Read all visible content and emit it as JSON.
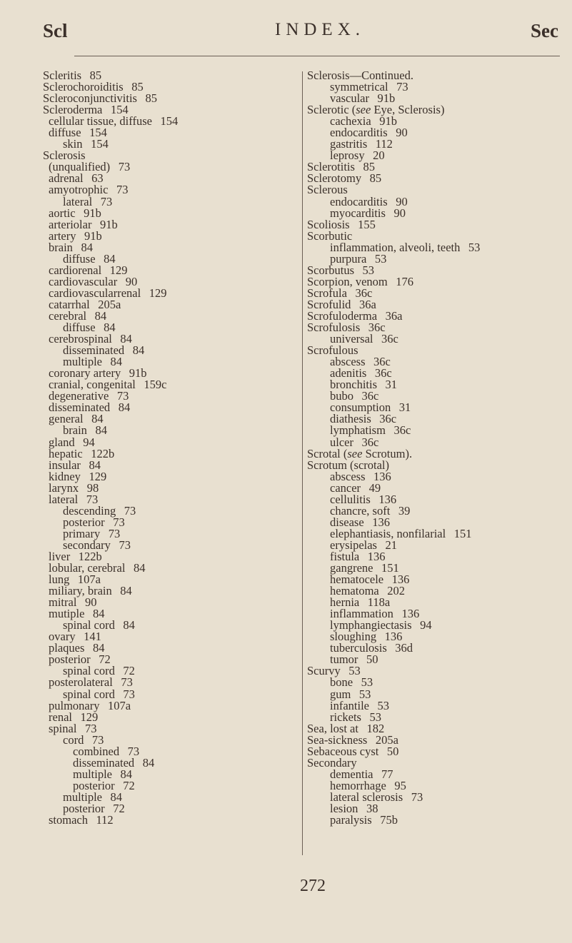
{
  "header": {
    "left": "Scl",
    "center": "INDEX.",
    "right": "Sec"
  },
  "page_number": "272",
  "left_column": [
    {
      "level": 0,
      "term": "Scleritis",
      "page": "85"
    },
    {
      "level": 0,
      "term": "Sclerochoroiditis",
      "page": "85"
    },
    {
      "level": 0,
      "term": "Scleroconjunctivitis",
      "page": "85"
    },
    {
      "level": 0,
      "term": "Scleroderma",
      "page": "154"
    },
    {
      "level": 1,
      "term": "cellular tissue, diffuse",
      "page": "154"
    },
    {
      "level": 1,
      "term": "diffuse",
      "page": "154"
    },
    {
      "level": 2,
      "term": "skin",
      "page": "154"
    },
    {
      "level": 0,
      "term": "Sclerosis",
      "page": ""
    },
    {
      "level": 1,
      "term": "(unqualified)",
      "page": "73"
    },
    {
      "level": 1,
      "term": "adrenal",
      "page": "63"
    },
    {
      "level": 1,
      "term": "amyotrophic",
      "page": "73"
    },
    {
      "level": 2,
      "term": "lateral",
      "page": "73"
    },
    {
      "level": 1,
      "term": "aortic",
      "page": "91b"
    },
    {
      "level": 1,
      "term": "arteriolar",
      "page": "91b"
    },
    {
      "level": 1,
      "term": "artery",
      "page": "91b"
    },
    {
      "level": 1,
      "term": "brain",
      "page": "84"
    },
    {
      "level": 2,
      "term": "diffuse",
      "page": "84"
    },
    {
      "level": 1,
      "term": "cardiorenal",
      "page": "129"
    },
    {
      "level": 1,
      "term": "cardiovascular",
      "page": "90"
    },
    {
      "level": 1,
      "term": "cardiovascularrenal",
      "page": "129"
    },
    {
      "level": 1,
      "term": "catarrhal",
      "page": "205a"
    },
    {
      "level": 1,
      "term": "cerebral",
      "page": "84"
    },
    {
      "level": 2,
      "term": "diffuse",
      "page": "84"
    },
    {
      "level": 1,
      "term": "cerebrospinal",
      "page": "84"
    },
    {
      "level": 2,
      "term": "disseminated",
      "page": "84"
    },
    {
      "level": 2,
      "term": "multiple",
      "page": "84"
    },
    {
      "level": 1,
      "term": "coronary artery",
      "page": "91b"
    },
    {
      "level": 1,
      "term": "cranial, congenital",
      "page": "159c"
    },
    {
      "level": 1,
      "term": "degenerative",
      "page": "73"
    },
    {
      "level": 1,
      "term": "disseminated",
      "page": "84"
    },
    {
      "level": 1,
      "term": "general",
      "page": "84"
    },
    {
      "level": 2,
      "term": "brain",
      "page": "84"
    },
    {
      "level": 1,
      "term": "gland",
      "page": "94"
    },
    {
      "level": 1,
      "term": "hepatic",
      "page": "122b"
    },
    {
      "level": 1,
      "term": "insular",
      "page": "84"
    },
    {
      "level": 1,
      "term": "kidney",
      "page": "129"
    },
    {
      "level": 1,
      "term": "larynx",
      "page": "98"
    },
    {
      "level": 1,
      "term": "lateral",
      "page": "73"
    },
    {
      "level": 2,
      "term": "descending",
      "page": "73"
    },
    {
      "level": 2,
      "term": "posterior",
      "page": "73"
    },
    {
      "level": 2,
      "term": "primary",
      "page": "73"
    },
    {
      "level": 2,
      "term": "secondary",
      "page": "73"
    },
    {
      "level": 1,
      "term": "liver",
      "page": "122b"
    },
    {
      "level": 1,
      "term": "lobular, cerebral",
      "page": "84"
    },
    {
      "level": 1,
      "term": "lung",
      "page": "107a"
    },
    {
      "level": 1,
      "term": "miliary, brain",
      "page": "84"
    },
    {
      "level": 1,
      "term": "mitral",
      "page": "90"
    },
    {
      "level": 1,
      "term": "mutiple",
      "page": "84"
    },
    {
      "level": 2,
      "term": "spinal cord",
      "page": "84"
    },
    {
      "level": 1,
      "term": "ovary",
      "page": "141"
    },
    {
      "level": 1,
      "term": "plaques",
      "page": "84"
    },
    {
      "level": 1,
      "term": "posterior",
      "page": "72"
    },
    {
      "level": 2,
      "term": "spinal cord",
      "page": "72"
    },
    {
      "level": 1,
      "term": "posterolateral",
      "page": "73"
    },
    {
      "level": 2,
      "term": "spinal cord",
      "page": "73"
    },
    {
      "level": 1,
      "term": "pulmonary",
      "page": "107a"
    },
    {
      "level": 1,
      "term": "renal",
      "page": "129"
    },
    {
      "level": 1,
      "term": "spinal",
      "page": "73"
    },
    {
      "level": 2,
      "term": "cord",
      "page": "73"
    },
    {
      "level": 3,
      "term": "combined",
      "page": "73"
    },
    {
      "level": 3,
      "term": "disseminated",
      "page": "84"
    },
    {
      "level": 3,
      "term": "multiple",
      "page": "84"
    },
    {
      "level": 3,
      "term": "posterior",
      "page": "72"
    },
    {
      "level": 2,
      "term": "multiple",
      "page": "84"
    },
    {
      "level": 2,
      "term": "posterior",
      "page": "72"
    },
    {
      "level": 1,
      "term": "stomach",
      "page": "112"
    }
  ],
  "right_column": [
    {
      "level": 0,
      "term": "Sclerosis—Continued.",
      "page": ""
    },
    {
      "level": 1,
      "term": "symmetrical",
      "page": "73"
    },
    {
      "level": 1,
      "term": "vascular",
      "page": "91b"
    },
    {
      "level": 0,
      "term": "Sclerotic (",
      "see": "see",
      "after": "Eye, Sclerosis)",
      "page": ""
    },
    {
      "level": 1,
      "term": "cachexia",
      "page": "91b"
    },
    {
      "level": 1,
      "term": "endocarditis",
      "page": "90"
    },
    {
      "level": 1,
      "term": "gastritis",
      "page": "112"
    },
    {
      "level": 1,
      "term": "leprosy",
      "page": "20"
    },
    {
      "level": 0,
      "term": "Sclerotitis",
      "page": "85"
    },
    {
      "level": 0,
      "term": "Sclerotomy",
      "page": "85"
    },
    {
      "level": 0,
      "term": "Sclerous",
      "page": ""
    },
    {
      "level": 1,
      "term": "endocarditis",
      "page": "90"
    },
    {
      "level": 1,
      "term": "myocarditis",
      "page": "90"
    },
    {
      "level": 0,
      "term": "Scoliosis",
      "page": "155"
    },
    {
      "level": 0,
      "term": "Scorbutic",
      "page": ""
    },
    {
      "level": 1,
      "term": "inflammation, alveoli, teeth",
      "page": "53"
    },
    {
      "level": 1,
      "term": "purpura",
      "page": "53"
    },
    {
      "level": 0,
      "term": "Scorbutus",
      "page": "53"
    },
    {
      "level": 0,
      "term": "Scorpion, venom",
      "page": "176"
    },
    {
      "level": 0,
      "term": "Scrofula",
      "page": "36c"
    },
    {
      "level": 0,
      "term": "Scrofulid",
      "page": "36a"
    },
    {
      "level": 0,
      "term": "Scrofuloderma",
      "page": "36a"
    },
    {
      "level": 0,
      "term": "Scrofulosis",
      "page": "36c"
    },
    {
      "level": 1,
      "term": "universal",
      "page": "36c"
    },
    {
      "level": 0,
      "term": "Scrofulous",
      "page": ""
    },
    {
      "level": 1,
      "term": "abscess",
      "page": "36c"
    },
    {
      "level": 1,
      "term": "adenitis",
      "page": "36c"
    },
    {
      "level": 1,
      "term": "bronchitis",
      "page": "31"
    },
    {
      "level": 1,
      "term": "bubo",
      "page": "36c"
    },
    {
      "level": 1,
      "term": "consumption",
      "page": "31"
    },
    {
      "level": 1,
      "term": "diathesis",
      "page": "36c"
    },
    {
      "level": 1,
      "term": "lymphatism",
      "page": "36c"
    },
    {
      "level": 1,
      "term": "ulcer",
      "page": "36c"
    },
    {
      "level": 0,
      "term": "Scrotal (",
      "see": "see",
      "after": "Scrotum).",
      "page": ""
    },
    {
      "level": 0,
      "term": "Scrotum (scrotal)",
      "page": ""
    },
    {
      "level": 1,
      "term": "abscess",
      "page": "136"
    },
    {
      "level": 1,
      "term": "cancer",
      "page": "49"
    },
    {
      "level": 1,
      "term": "cellulitis",
      "page": "136"
    },
    {
      "level": 1,
      "term": "chancre, soft",
      "page": "39"
    },
    {
      "level": 1,
      "term": "disease",
      "page": "136"
    },
    {
      "level": 1,
      "term": "elephantiasis, nonfilarial",
      "page": "151"
    },
    {
      "level": 1,
      "term": "erysipelas",
      "page": "21"
    },
    {
      "level": 1,
      "term": "fistula",
      "page": "136"
    },
    {
      "level": 1,
      "term": "gangrene",
      "page": "151"
    },
    {
      "level": 1,
      "term": "hematocele",
      "page": "136"
    },
    {
      "level": 1,
      "term": "hematoma",
      "page": "202"
    },
    {
      "level": 1,
      "term": "hernia",
      "page": "118a"
    },
    {
      "level": 1,
      "term": "inflammation",
      "page": "136"
    },
    {
      "level": 1,
      "term": "lymphangiectasis",
      "page": "94"
    },
    {
      "level": 1,
      "term": "sloughing",
      "page": "136"
    },
    {
      "level": 1,
      "term": "tuberculosis",
      "page": "36d"
    },
    {
      "level": 1,
      "term": "tumor",
      "page": "50"
    },
    {
      "level": 0,
      "term": "Scurvy",
      "page": "53"
    },
    {
      "level": 1,
      "term": "bone",
      "page": "53"
    },
    {
      "level": 1,
      "term": "gum",
      "page": "53"
    },
    {
      "level": 1,
      "term": "infantile",
      "page": "53"
    },
    {
      "level": 1,
      "term": "rickets",
      "page": "53"
    },
    {
      "level": 0,
      "term": "Sea, lost at",
      "page": "182"
    },
    {
      "level": 0,
      "term": "Sea-sickness",
      "page": "205a"
    },
    {
      "level": 0,
      "term": "Sebaceous cyst",
      "page": "50"
    },
    {
      "level": 0,
      "term": "Secondary",
      "page": ""
    },
    {
      "level": 1,
      "term": "dementia",
      "page": "77"
    },
    {
      "level": 1,
      "term": "hemorrhage",
      "page": "95"
    },
    {
      "level": 1,
      "term": "lateral sclerosis",
      "page": "73"
    },
    {
      "level": 1,
      "term": "lesion",
      "page": "38"
    },
    {
      "level": 1,
      "term": "paralysis",
      "page": "75b"
    }
  ]
}
